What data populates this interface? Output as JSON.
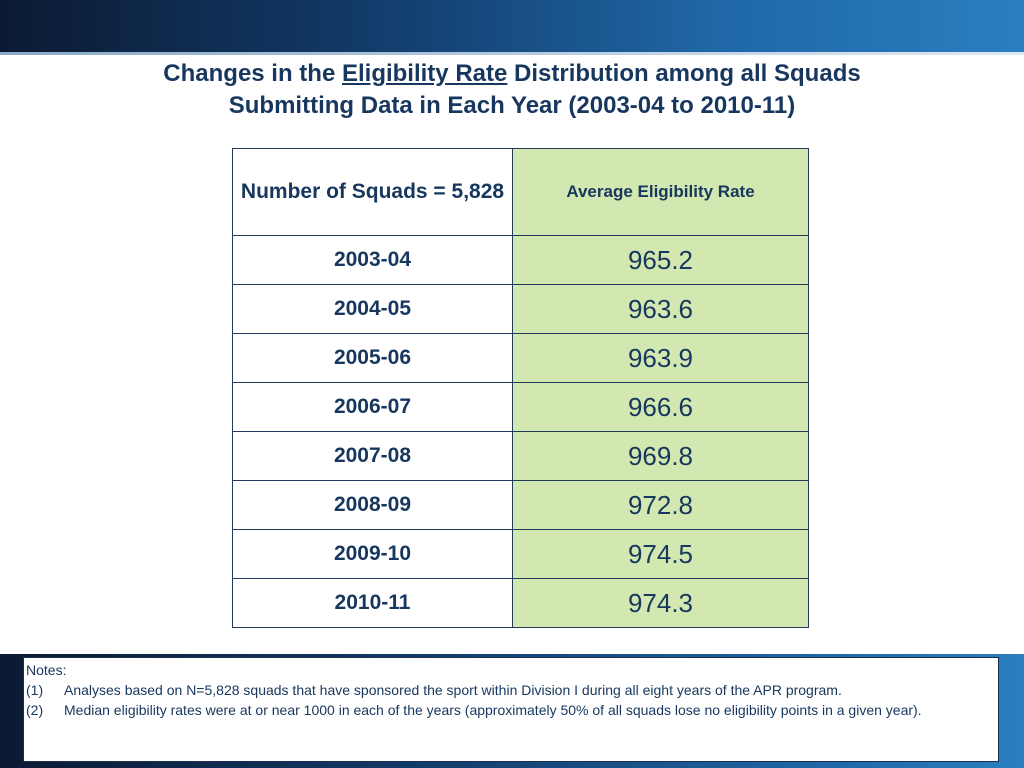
{
  "title": {
    "part1": "Changes in the ",
    "underlined": "Eligibility Rate",
    "part2": " Distribution among all Squads",
    "line2": "Submitting Data in Each Year (2003-04 to 2010-11)"
  },
  "table": {
    "header_left": "Number of Squads = 5,828",
    "header_right": "Average Eligibility Rate",
    "rows": [
      {
        "year": "2003-04",
        "rate": "965.2"
      },
      {
        "year": "2004-05",
        "rate": "963.6"
      },
      {
        "year": "2005-06",
        "rate": "963.9"
      },
      {
        "year": "2006-07",
        "rate": "966.6"
      },
      {
        "year": "2007-08",
        "rate": "969.8"
      },
      {
        "year": "2008-09",
        "rate": "972.8"
      },
      {
        "year": "2009-10",
        "rate": "974.5"
      },
      {
        "year": "2010-11",
        "rate": "974.3"
      }
    ]
  },
  "notes": {
    "heading": "Notes:",
    "items": [
      {
        "num": "(1)",
        "text": "Analyses based on N=5,828 squads that have sponsored the sport within Division I during all eight years of the APR program."
      },
      {
        "num": "(2)",
        "text": "Median eligibility rates were at or near 1000 in each of the years (approximately 50% of all squads lose no eligibility points in a given year)."
      }
    ]
  },
  "colors": {
    "title_text": "#17375e",
    "green_cell": "#d3e8b0",
    "banner_dark": "#0b1a33",
    "banner_light": "#2a7fc0"
  }
}
